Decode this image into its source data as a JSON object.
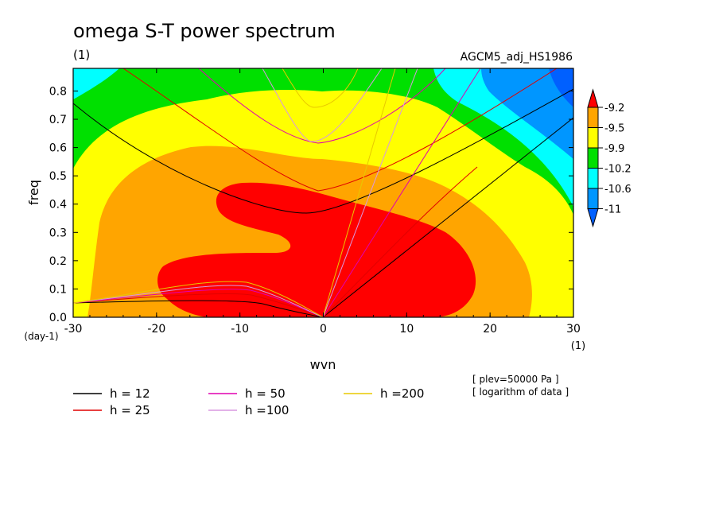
{
  "chart_data": {
    "type": "heatmap",
    "title": "omega S-T power spectrum",
    "title_unit": "(1)",
    "subtitle_right": "AGCM5_adj_HS1986",
    "xlabel": "wvn",
    "ylabel": "freq",
    "x_unit": "(1)",
    "y_unit": "(day-1)",
    "xlim": [
      -30,
      30
    ],
    "ylim": [
      0,
      0.88
    ],
    "x_ticks": [
      "-30",
      "-20",
      "-10",
      "0",
      "10",
      "20",
      "30"
    ],
    "y_ticks": [
      "0.0",
      "0.1",
      "0.2",
      "0.3",
      "0.4",
      "0.5",
      "0.6",
      "0.7",
      "0.8"
    ],
    "color_levels": [
      "-9.2",
      "-9.5",
      "-9.9",
      "-10.2",
      "-10.6",
      "-11"
    ],
    "color_scale": [
      "#ff0000",
      "#ffa500",
      "#ffff00",
      "#00e000",
      "#00ffff",
      "#0096ff",
      "#0060ff"
    ],
    "notes": [
      "[ plev=50000 Pa ]",
      "[ logarithm of data ]"
    ],
    "dispersion_curves": [
      {
        "name": "h = 12",
        "color": "#000000"
      },
      {
        "name": "h = 25",
        "color": "#e00000"
      },
      {
        "name": "h = 50",
        "color": "#e000b0"
      },
      {
        "name": "h =100",
        "color": "#d898e0"
      },
      {
        "name": "h =200",
        "color": "#e8c800"
      }
    ]
  }
}
